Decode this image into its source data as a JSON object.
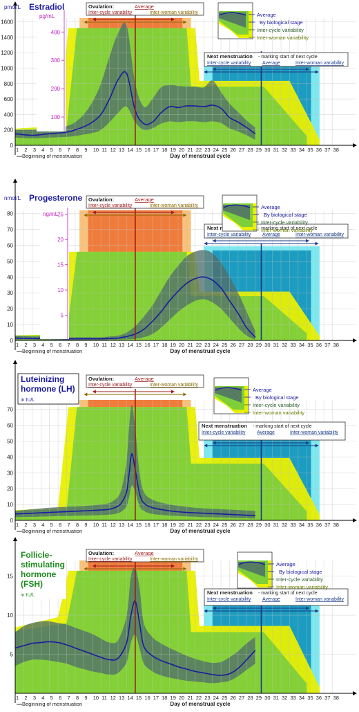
{
  "colors": {
    "average": "#1a1aa0",
    "cycle_band": "#4f6e6a",
    "woman_band": "#7ecf3a",
    "outer_band": "#e8f000",
    "ovulation_inner": "#f07c3c",
    "ovulation_outer": "#f9c27a",
    "menses_inner": "#1c9cc0",
    "menses_outer": "#7de8f0",
    "ovulation_line": "#9b1a1a",
    "menses_line": "#1a3a8a",
    "grid": "#c0c0c0",
    "pink_axis": "#c21ec2",
    "title_blue": "#1a1aa0",
    "title_green": "#1d8a1d"
  },
  "common": {
    "xlabel": "Day of menstrual cycle",
    "beginning_label": "Beginning of menstruation",
    "x_ticks": [
      1,
      2,
      3,
      4,
      5,
      6,
      7,
      8,
      9,
      10,
      11,
      12,
      13,
      14,
      15,
      16,
      17,
      18,
      19,
      20,
      21,
      22,
      23,
      24,
      25,
      26,
      27,
      28,
      29,
      30,
      31,
      32,
      33,
      34,
      35,
      36,
      37,
      38
    ],
    "ovulation": {
      "title": "Ovulation:",
      "average": "Average",
      "inter_cycle": "Inter-cycle variability",
      "inter_woman": "Inter-woman variability"
    },
    "menses": {
      "title": "Next menstruation",
      "subtitle": " - marking start of next cycle",
      "inter_cycle": "Inter-cycle variability",
      "average": "Average",
      "inter_woman": "Inter-woman variability"
    },
    "legend": {
      "average": "Average",
      "stage": "By biological stage",
      "inter_cycle": "Inter-cycle variability",
      "inter_woman": "Inter-woman variability"
    }
  },
  "chart_data": [
    {
      "type": "area",
      "title": "Estradiol",
      "ylabel": "pmol/L",
      "ylim": [
        0,
        1650
      ],
      "y_ticks": [
        0,
        200,
        400,
        600,
        800,
        1000,
        1200,
        1400,
        1600
      ],
      "secondary_unit": "pg/mL",
      "secondary_ticks": [
        100,
        200,
        300,
        400
      ],
      "x": [
        1,
        3,
        5,
        7,
        8,
        9,
        10,
        11,
        12,
        13,
        14,
        15,
        16,
        17,
        18,
        19,
        20,
        21,
        22,
        23,
        24,
        25,
        26,
        27,
        28,
        29
      ],
      "series": [
        {
          "name": "Average",
          "values": [
            150,
            130,
            150,
            170,
            200,
            240,
            300,
            400,
            600,
            850,
            930,
            450,
            280,
            300,
            420,
            500,
            490,
            510,
            510,
            500,
            520,
            480,
            360,
            300,
            230,
            150
          ]
        },
        {
          "name": "Inter-cycle variability",
          "values_low": [
            100,
            90,
            100,
            110,
            120,
            140,
            160,
            200,
            300,
            420,
            500,
            300,
            200,
            220,
            280,
            310,
            300,
            310,
            310,
            300,
            310,
            290,
            220,
            180,
            130,
            70
          ],
          "values_high": [
            200,
            200,
            220,
            250,
            300,
            400,
            560,
            800,
            1150,
            1450,
            1550,
            800,
            500,
            600,
            750,
            780,
            770,
            760,
            760,
            750,
            840,
            690,
            540,
            430,
            320,
            230
          ]
        }
      ]
    },
    {
      "type": "area",
      "title": "Progesterone",
      "ylabel": "nmol/L",
      "ylim": [
        0,
        82
      ],
      "y_ticks": [
        0,
        10,
        20,
        30,
        40,
        50,
        60,
        70,
        80
      ],
      "secondary_unit": "ng/mL",
      "secondary_ticks": [
        5,
        10,
        15,
        20,
        25
      ],
      "x": [
        1,
        3,
        5,
        7,
        9,
        11,
        12,
        13,
        14,
        15,
        16,
        17,
        18,
        19,
        20,
        21,
        22,
        23,
        24,
        25,
        26,
        27,
        28,
        29
      ],
      "series": [
        {
          "name": "Average",
          "values": [
            1.5,
            1.2,
            1.2,
            1,
            1,
            1,
            1.2,
            1.5,
            2.5,
            4,
            7,
            12,
            18,
            25,
            31,
            36,
            39,
            40,
            38,
            33,
            25,
            17,
            8,
            2
          ]
        },
        {
          "name": "Inter-cycle variability",
          "values_low": [
            0.5,
            0.4,
            0.4,
            0.3,
            0.3,
            0.3,
            0.4,
            0.5,
            0.7,
            1,
            2,
            4,
            8,
            13,
            18,
            22,
            25,
            26,
            24,
            20,
            14,
            8,
            3,
            0.5
          ],
          "values_high": [
            3,
            2.5,
            2.5,
            2,
            2,
            2,
            2.5,
            3,
            5,
            9,
            15,
            22,
            31,
            40,
            47,
            53,
            56,
            57,
            55,
            49,
            40,
            30,
            18,
            6
          ]
        }
      ]
    },
    {
      "type": "area",
      "title": "Luteinizing hormone (LH)",
      "title_lines": [
        "Luteinizing",
        "hormone (LH)"
      ],
      "ylabel": "in IU/L",
      "ylim": [
        0,
        76
      ],
      "y_ticks": [
        0,
        10,
        20,
        30,
        40,
        50,
        60,
        70
      ],
      "x": [
        1,
        3,
        5,
        7,
        9,
        11,
        12,
        13,
        13.5,
        14,
        14.3,
        14.6,
        15,
        15.5,
        16,
        17,
        19,
        21,
        23,
        25,
        27,
        29
      ],
      "series": [
        {
          "name": "Average",
          "values": [
            4,
            4.5,
            5,
            5.5,
            6,
            6.5,
            7,
            9,
            12,
            18,
            30,
            42,
            32,
            17,
            11,
            8,
            6,
            5,
            4.5,
            4,
            3.5,
            3
          ]
        },
        {
          "name": "Inter-cycle variability",
          "values_low": [
            2,
            2.2,
            2.5,
            2.8,
            3,
            3.3,
            3.6,
            4.5,
            6,
            9,
            15,
            22,
            18,
            9,
            6,
            4,
            3,
            2.5,
            2,
            1.8,
            1.5,
            1.2
          ],
          "values_high": [
            6,
            7,
            8,
            8.5,
            9,
            10,
            11,
            15,
            22,
            38,
            60,
            73,
            58,
            30,
            18,
            13,
            10,
            8.5,
            7.5,
            7,
            6.5,
            6
          ]
        }
      ]
    },
    {
      "type": "area",
      "title": "Follicle-stimulating hormone (FSH)",
      "title_lines": [
        "Follicle-",
        "stimulating",
        "hormone",
        "(FSH)"
      ],
      "ylabel": "in IU/L",
      "ylim": [
        0,
        17
      ],
      "y_ticks": [
        5,
        10,
        15
      ],
      "x": [
        1,
        2,
        3,
        4,
        5,
        6,
        7,
        8,
        9,
        10,
        11,
        12,
        13,
        14,
        14.5,
        15,
        15.5,
        16,
        17,
        18,
        19,
        20,
        21,
        22,
        23,
        24,
        25,
        26,
        27,
        28,
        29
      ],
      "series": [
        {
          "name": "Average",
          "values": [
            5.8,
            6.1,
            6.4,
            6.5,
            6.6,
            6.5,
            6.2,
            5.8,
            5.4,
            5,
            4.6,
            4.3,
            4.5,
            6.5,
            10,
            11.8,
            9,
            6,
            4.8,
            4.2,
            3.8,
            3.4,
            3.1,
            2.8,
            2.6,
            2.4,
            2.3,
            2.5,
            3.2,
            4.3,
            5.5
          ]
        },
        {
          "name": "Inter-cycle variability",
          "values_low": [
            3.5,
            4,
            4.3,
            4.3,
            4.2,
            4,
            3.8,
            3.4,
            3.1,
            2.8,
            2.6,
            2.4,
            2.6,
            4,
            6.5,
            7.5,
            5.8,
            3.8,
            2.8,
            2.3,
            2,
            1.8,
            1.6,
            1.5,
            1.4,
            1.3,
            1.4,
            1.6,
            2.2,
            3,
            3.8
          ],
          "values_high": [
            7.8,
            8.6,
            9,
            9.2,
            9.2,
            9,
            8.8,
            8.4,
            8,
            7.6,
            7,
            6.5,
            6.8,
            10,
            15,
            16,
            13.5,
            9,
            7.2,
            6.4,
            5.8,
            5.3,
            4.8,
            4.4,
            4.1,
            3.9,
            4,
            4.6,
            5.4,
            6.4,
            7.2
          ]
        }
      ]
    }
  ]
}
